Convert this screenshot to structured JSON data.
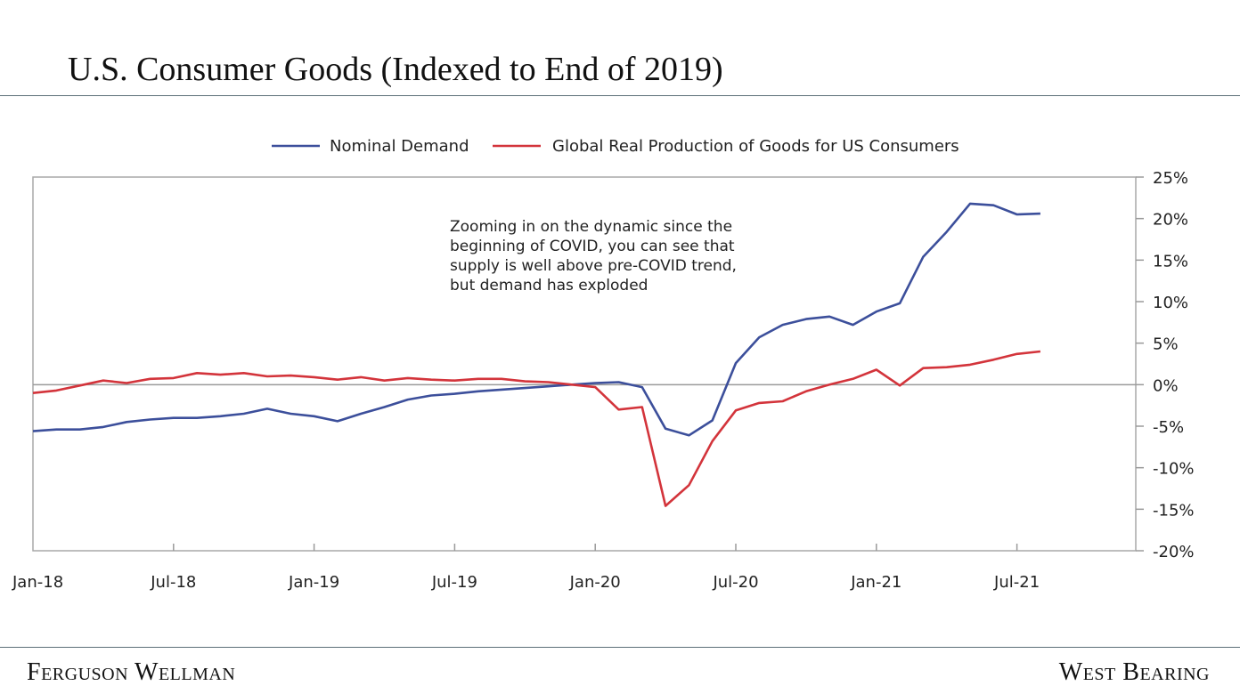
{
  "page": {
    "title": "U.S. Consumer Goods (Indexed to End of 2019)",
    "footer_left": "Ferguson Wellman",
    "footer_right": "West Bearing"
  },
  "chart_data": {
    "type": "line",
    "title": "",
    "xlabel": "",
    "ylabel": "",
    "x_start": "Jan-18",
    "x_ticks": [
      "Jan-18",
      "Jul-18",
      "Jan-19",
      "Jul-19",
      "Jan-20",
      "Jul-20",
      "Jan-21",
      "Jul-21"
    ],
    "y_ticks": [
      "25%",
      "20%",
      "15%",
      "10%",
      "5%",
      "0%",
      "-5%",
      "-10%",
      "-15%",
      "-20%"
    ],
    "ylim": [
      -20,
      25
    ],
    "grid": false,
    "legend_position": "top-center",
    "series": [
      {
        "name": "Nominal Demand",
        "color": "#3c4f9b",
        "values": [
          -5.6,
          -5.4,
          -5.4,
          -5.1,
          -4.5,
          -4.2,
          -4.0,
          -4.0,
          -3.8,
          -3.5,
          -2.9,
          -3.5,
          -3.8,
          -4.4,
          -3.5,
          -2.7,
          -1.8,
          -1.3,
          -1.1,
          -0.8,
          -0.6,
          -0.4,
          -0.2,
          0.0,
          0.2,
          0.3,
          -0.3,
          -5.3,
          -6.1,
          -4.3,
          2.6,
          5.7,
          7.2,
          7.9,
          8.2,
          7.2,
          8.8,
          9.8,
          15.4,
          18.4,
          21.8,
          21.6,
          20.5,
          20.6
        ]
      },
      {
        "name": "Global Real Production of Goods for US Consumers",
        "color": "#d3343b",
        "values": [
          -1.0,
          -0.7,
          -0.1,
          0.5,
          0.2,
          0.7,
          0.8,
          1.4,
          1.2,
          1.4,
          1.0,
          1.1,
          0.9,
          0.6,
          0.9,
          0.5,
          0.8,
          0.6,
          0.5,
          0.7,
          0.7,
          0.4,
          0.3,
          0.0,
          -0.3,
          -3.0,
          -2.7,
          -14.6,
          -12.1,
          -6.8,
          -3.1,
          -2.2,
          -2.0,
          -0.8,
          0.0,
          0.7,
          1.8,
          -0.1,
          2.0,
          2.1,
          2.4,
          3.0,
          3.7,
          4.0
        ]
      }
    ],
    "annotation": [
      "Zooming in on the dynamic since the",
      "beginning of COVID, you can see that",
      "supply is well above pre-COVID trend,",
      "but demand has exploded"
    ]
  }
}
